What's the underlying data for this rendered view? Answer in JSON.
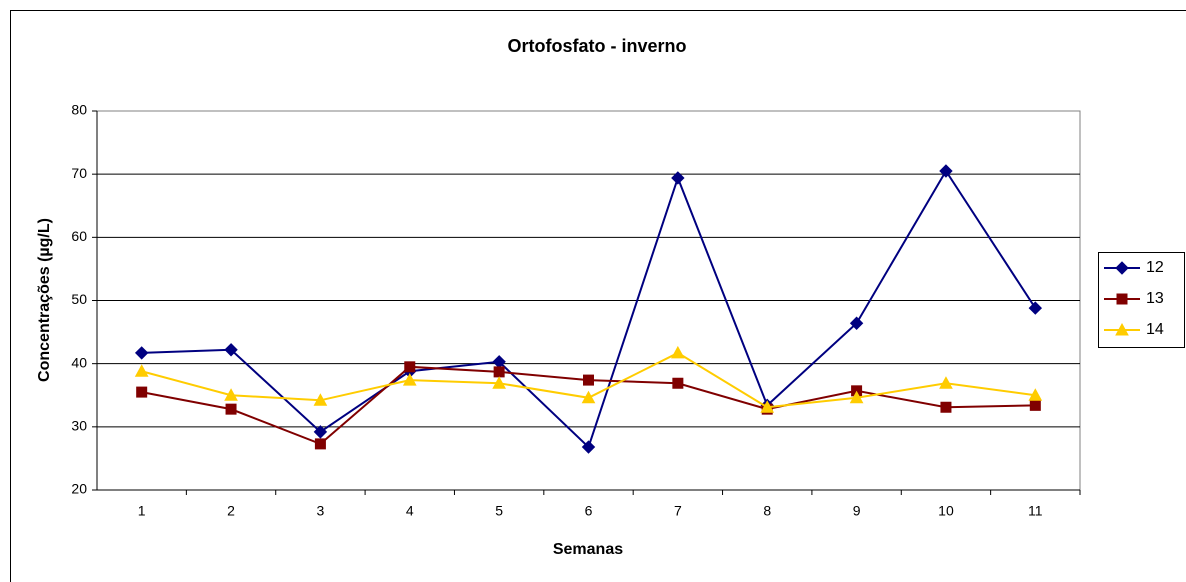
{
  "chart_data": {
    "type": "line",
    "title": "Ortofosfato - inverno",
    "x_label": "Semanas",
    "y_label": "Concentrações (µg/L)",
    "categories": [
      "1",
      "2",
      "3",
      "4",
      "5",
      "6",
      "7",
      "8",
      "9",
      "10",
      "11"
    ],
    "series": [
      {
        "name": "12",
        "color": "#000080",
        "marker": "diamond",
        "values": [
          41.7,
          42.2,
          29.2,
          38.8,
          40.3,
          26.8,
          69.4,
          33.4,
          46.4,
          70.5,
          48.8
        ]
      },
      {
        "name": "13",
        "color": "#800000",
        "marker": "square",
        "values": [
          35.5,
          32.8,
          27.3,
          39.5,
          38.7,
          37.4,
          36.9,
          32.8,
          35.7,
          33.1,
          33.4
        ]
      },
      {
        "name": "14",
        "color": "#FFCC00",
        "marker": "triangle",
        "values": [
          38.8,
          35.0,
          34.2,
          37.4,
          36.9,
          34.6,
          41.7,
          33.1,
          34.6,
          36.9,
          35.0
        ]
      }
    ],
    "ylim": [
      20,
      80
    ],
    "yticks": [
      20,
      30,
      40,
      50,
      60,
      70,
      80
    ],
    "grid": true,
    "legend": "right"
  }
}
